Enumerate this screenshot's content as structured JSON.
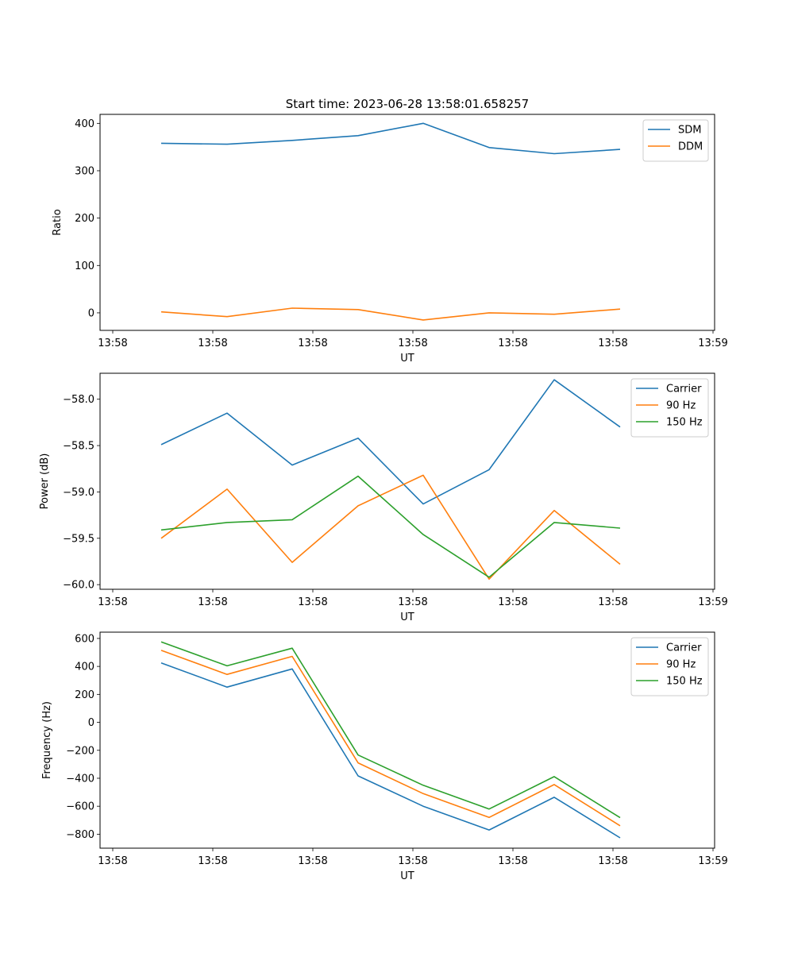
{
  "figure": {
    "title": "Start time: 2023-06-28 13:58:01.658257"
  },
  "colors": {
    "blue": "#1f77b4",
    "orange": "#ff7f0e",
    "green": "#2ca02c"
  },
  "chart_data": [
    {
      "type": "line",
      "title": "Start time: 2023-06-28 13:58:01.658257",
      "xlabel": "UT",
      "ylabel": "Ratio",
      "x_tick_labels": [
        "13:58",
        "13:58",
        "13:58",
        "13:58",
        "13:58",
        "13:58",
        "13:59"
      ],
      "y_ticks": [
        0,
        100,
        200,
        300,
        400
      ],
      "ylim": [
        -37,
        419
      ],
      "legend_position": "upper-right",
      "grid": false,
      "series": [
        {
          "name": "SDM",
          "color": "#1f77b4",
          "values": [
            358,
            356,
            364,
            374,
            400,
            349,
            336,
            345
          ]
        },
        {
          "name": "DDM",
          "color": "#ff7f0e",
          "values": [
            2,
            -8,
            10,
            7,
            -15,
            0,
            -3,
            8
          ]
        }
      ]
    },
    {
      "type": "line",
      "title": "",
      "xlabel": "UT",
      "ylabel": "Power (dB)",
      "x_tick_labels": [
        "13:58",
        "13:58",
        "13:58",
        "13:58",
        "13:58",
        "13:58",
        "13:59"
      ],
      "y_ticks": [
        -60.0,
        -59.5,
        -59.0,
        -58.5,
        -58.0
      ],
      "y_tick_labels": [
        "−60.0",
        "−59.5",
        "−59.0",
        "−58.5",
        "−58.0"
      ],
      "ylim": [
        -60.05,
        -57.72
      ],
      "legend_position": "upper-right",
      "grid": false,
      "series": [
        {
          "name": "Carrier",
          "color": "#1f77b4",
          "values": [
            -58.49,
            -58.15,
            -58.71,
            -58.42,
            -59.13,
            -58.76,
            -57.79,
            -58.3
          ]
        },
        {
          "name": "90 Hz",
          "color": "#ff7f0e",
          "values": [
            -59.5,
            -58.97,
            -59.76,
            -59.15,
            -58.82,
            -59.94,
            -59.2,
            -59.78
          ]
        },
        {
          "name": "150 Hz",
          "color": "#2ca02c",
          "values": [
            -59.41,
            -59.33,
            -59.3,
            -58.83,
            -59.46,
            -59.92,
            -59.33,
            -59.39
          ]
        }
      ]
    },
    {
      "type": "line",
      "title": "",
      "xlabel": "UT",
      "ylabel": "Frequency (Hz)",
      "x_tick_labels": [
        "13:58",
        "13:58",
        "13:58",
        "13:58",
        "13:58",
        "13:58",
        "13:59"
      ],
      "y_ticks": [
        -800,
        -600,
        -400,
        -200,
        0,
        200,
        400,
        600
      ],
      "y_tick_labels": [
        "−800",
        "−600",
        "−400",
        "−200",
        "0",
        "200",
        "400",
        "600"
      ],
      "ylim": [
        -900,
        645
      ],
      "legend_position": "upper-right",
      "grid": false,
      "series": [
        {
          "name": "Carrier",
          "color": "#1f77b4",
          "values": [
            425,
            252,
            382,
            -383,
            -600,
            -770,
            -536,
            -826
          ]
        },
        {
          "name": "90 Hz",
          "color": "#ff7f0e",
          "values": [
            515,
            343,
            472,
            -290,
            -510,
            -680,
            -445,
            -740
          ]
        },
        {
          "name": "150 Hz",
          "color": "#2ca02c",
          "values": [
            575,
            404,
            530,
            -234,
            -450,
            -620,
            -388,
            -682
          ]
        }
      ]
    }
  ]
}
